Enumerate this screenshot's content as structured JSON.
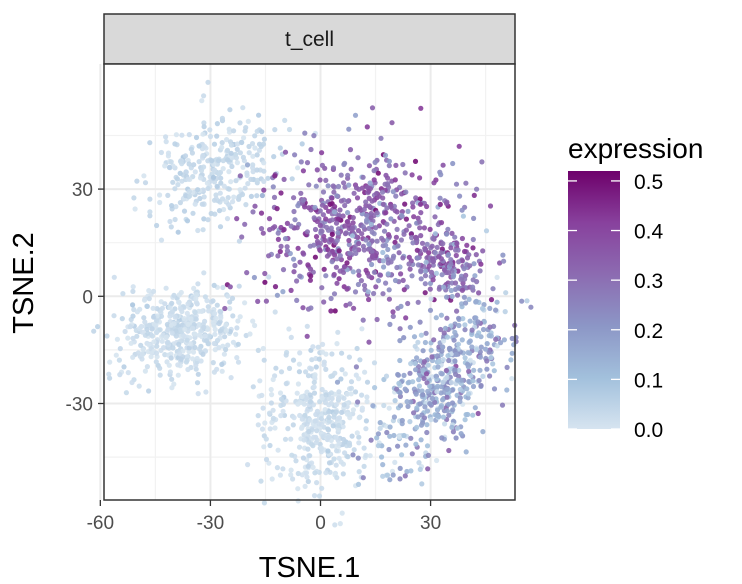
{
  "chart_data": {
    "type": "scatter",
    "facet_label": "t_cell",
    "xlabel": "TSNE.1",
    "ylabel": "TSNE.2",
    "xlim": [
      -59,
      53
    ],
    "ylim": [
      -57,
      65
    ],
    "x_ticks": [
      -60,
      -30,
      0,
      30
    ],
    "y_ticks": [
      -30,
      0,
      30
    ],
    "x_tick_labels": [
      "-60",
      "-30",
      "0",
      "30"
    ],
    "y_tick_labels": [
      "-30",
      "0",
      "30"
    ],
    "grid": true,
    "legend": {
      "title": "expression",
      "placement": "right",
      "min": 0.0,
      "max": 0.52,
      "ticks": [
        0.0,
        0.1,
        0.2,
        0.3,
        0.4,
        0.5
      ],
      "tick_labels": [
        "0.0",
        "0.1",
        "0.2",
        "0.3",
        "0.4",
        "0.5"
      ],
      "colors": [
        "#d6e4f0",
        "#a2c0dc",
        "#8c96c6",
        "#8c6bb1",
        "#88419d",
        "#6e016b"
      ]
    },
    "clusters": [
      {
        "cx": -29,
        "cy": 35,
        "sx": 7.0,
        "sy": 10.0,
        "rot": -50,
        "n": 300,
        "expr": 0.03
      },
      {
        "cx": -38,
        "cy": -10,
        "sx": 9.0,
        "sy": 6.5,
        "rot": 15,
        "n": 450,
        "expr": 0.02
      },
      {
        "cx": 0,
        "cy": -34,
        "sx": 7.5,
        "sy": 10.0,
        "rot": 0,
        "n": 400,
        "expr": 0.02
      },
      {
        "cx": 11,
        "cy": 19,
        "sx": 14.5,
        "sy": 11.0,
        "rot": 5,
        "n": 650,
        "expr": 0.32
      },
      {
        "cx": 35,
        "cy": 8,
        "sx": 5.5,
        "sy": 4.0,
        "rot": -35,
        "n": 150,
        "expr": 0.3
      },
      {
        "cx": 34,
        "cy": -23,
        "sx": 6.5,
        "sy": 12.0,
        "rot": -35,
        "n": 500,
        "expr": 0.15
      }
    ]
  }
}
